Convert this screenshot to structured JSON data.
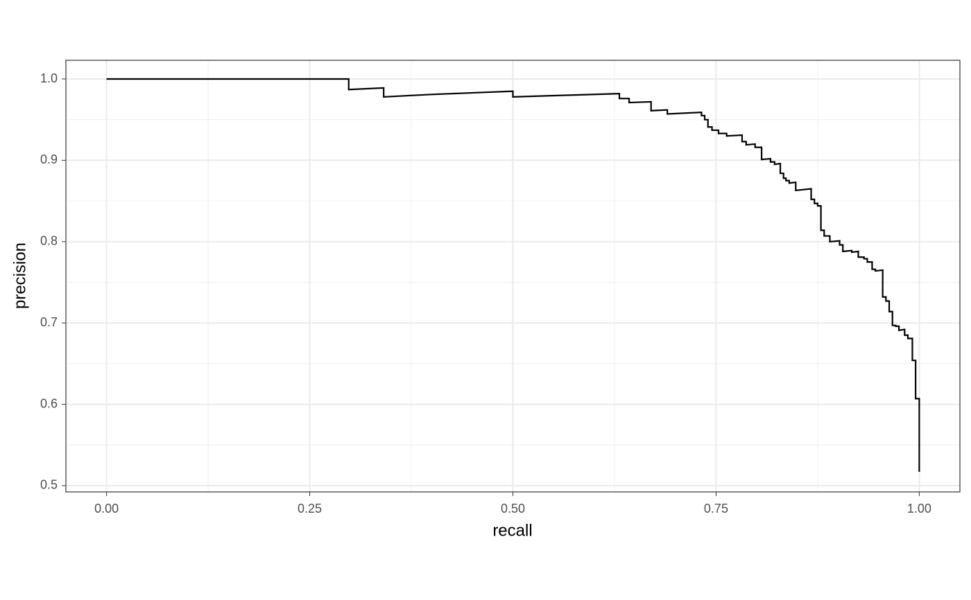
{
  "chart_data": {
    "type": "line",
    "x_label": "recall",
    "y_label": "precision",
    "color": "#000000",
    "grid": true,
    "xlim": [
      -0.05,
      1.05
    ],
    "ylim": [
      0.4923,
      1.023
    ],
    "xticks": [
      {
        "value": 0,
        "label": "0.00"
      },
      {
        "value": 0.25,
        "label": "0.25"
      },
      {
        "value": 0.5,
        "label": "0.50"
      },
      {
        "value": 0.75,
        "label": "0.75"
      },
      {
        "value": 1,
        "label": "1.00"
      }
    ],
    "yticks": [
      0.5,
      0.6,
      0.7,
      0.8,
      0.9,
      {
        "value": 1,
        "label": "1.0"
      }
    ],
    "x_minor_grid": [
      0.125,
      0.375,
      0.625,
      0.875
    ],
    "y_minor_grid": [
      0.55,
      0.65,
      0.75,
      0.85,
      0.95
    ],
    "x": [
      0,
      0.298,
      0.298,
      0.341,
      0.341,
      0.4,
      0.5,
      0.5,
      0.631,
      0.631,
      0.643,
      0.643,
      0.67,
      0.67,
      0.69,
      0.69,
      0.732,
      0.732,
      0.736,
      0.736,
      0.74,
      0.74,
      0.745,
      0.745,
      0.753,
      0.753,
      0.763,
      0.763,
      0.782,
      0.782,
      0.787,
      0.787,
      0.798,
      0.798,
      0.806,
      0.806,
      0.817,
      0.817,
      0.822,
      0.822,
      0.829,
      0.829,
      0.833,
      0.833,
      0.836,
      0.836,
      0.84,
      0.84,
      0.848,
      0.848,
      0.867,
      0.867,
      0.871,
      0.871,
      0.875,
      0.875,
      0.879,
      0.879,
      0.883,
      0.883,
      0.89,
      0.89,
      0.902,
      0.902,
      0.906,
      0.906,
      0.917,
      0.917,
      0.925,
      0.925,
      0.932,
      0.932,
      0.936,
      0.936,
      0.942,
      0.942,
      0.946,
      0.946,
      0.955,
      0.955,
      0.959,
      0.959,
      0.963,
      0.963,
      0.967,
      0.967,
      0.971,
      0.971,
      0.975,
      0.975,
      0.982,
      0.982,
      0.986,
      0.986,
      0.9915,
      0.9915,
      0.9955,
      0.9955,
      1.0,
      1.0
    ],
    "values": [
      1.0,
      1.0,
      0.987,
      0.989,
      0.978,
      0.981,
      0.985,
      0.978,
      0.982,
      0.976,
      0.976,
      0.971,
      0.972,
      0.961,
      0.962,
      0.957,
      0.959,
      0.955,
      0.955,
      0.95,
      0.95,
      0.941,
      0.941,
      0.937,
      0.937,
      0.933,
      0.933,
      0.93,
      0.931,
      0.923,
      0.923,
      0.919,
      0.92,
      0.916,
      0.916,
      0.901,
      0.902,
      0.898,
      0.898,
      0.895,
      0.896,
      0.884,
      0.884,
      0.878,
      0.878,
      0.875,
      0.875,
      0.872,
      0.873,
      0.863,
      0.865,
      0.852,
      0.852,
      0.847,
      0.847,
      0.844,
      0.844,
      0.814,
      0.814,
      0.807,
      0.807,
      0.8,
      0.801,
      0.796,
      0.796,
      0.788,
      0.789,
      0.787,
      0.788,
      0.781,
      0.781,
      0.779,
      0.779,
      0.775,
      0.775,
      0.766,
      0.766,
      0.764,
      0.765,
      0.732,
      0.732,
      0.727,
      0.727,
      0.714,
      0.714,
      0.697,
      0.697,
      0.696,
      0.696,
      0.691,
      0.692,
      0.685,
      0.685,
      0.681,
      0.681,
      0.654,
      0.654,
      0.607,
      0.607,
      0.517
    ]
  }
}
